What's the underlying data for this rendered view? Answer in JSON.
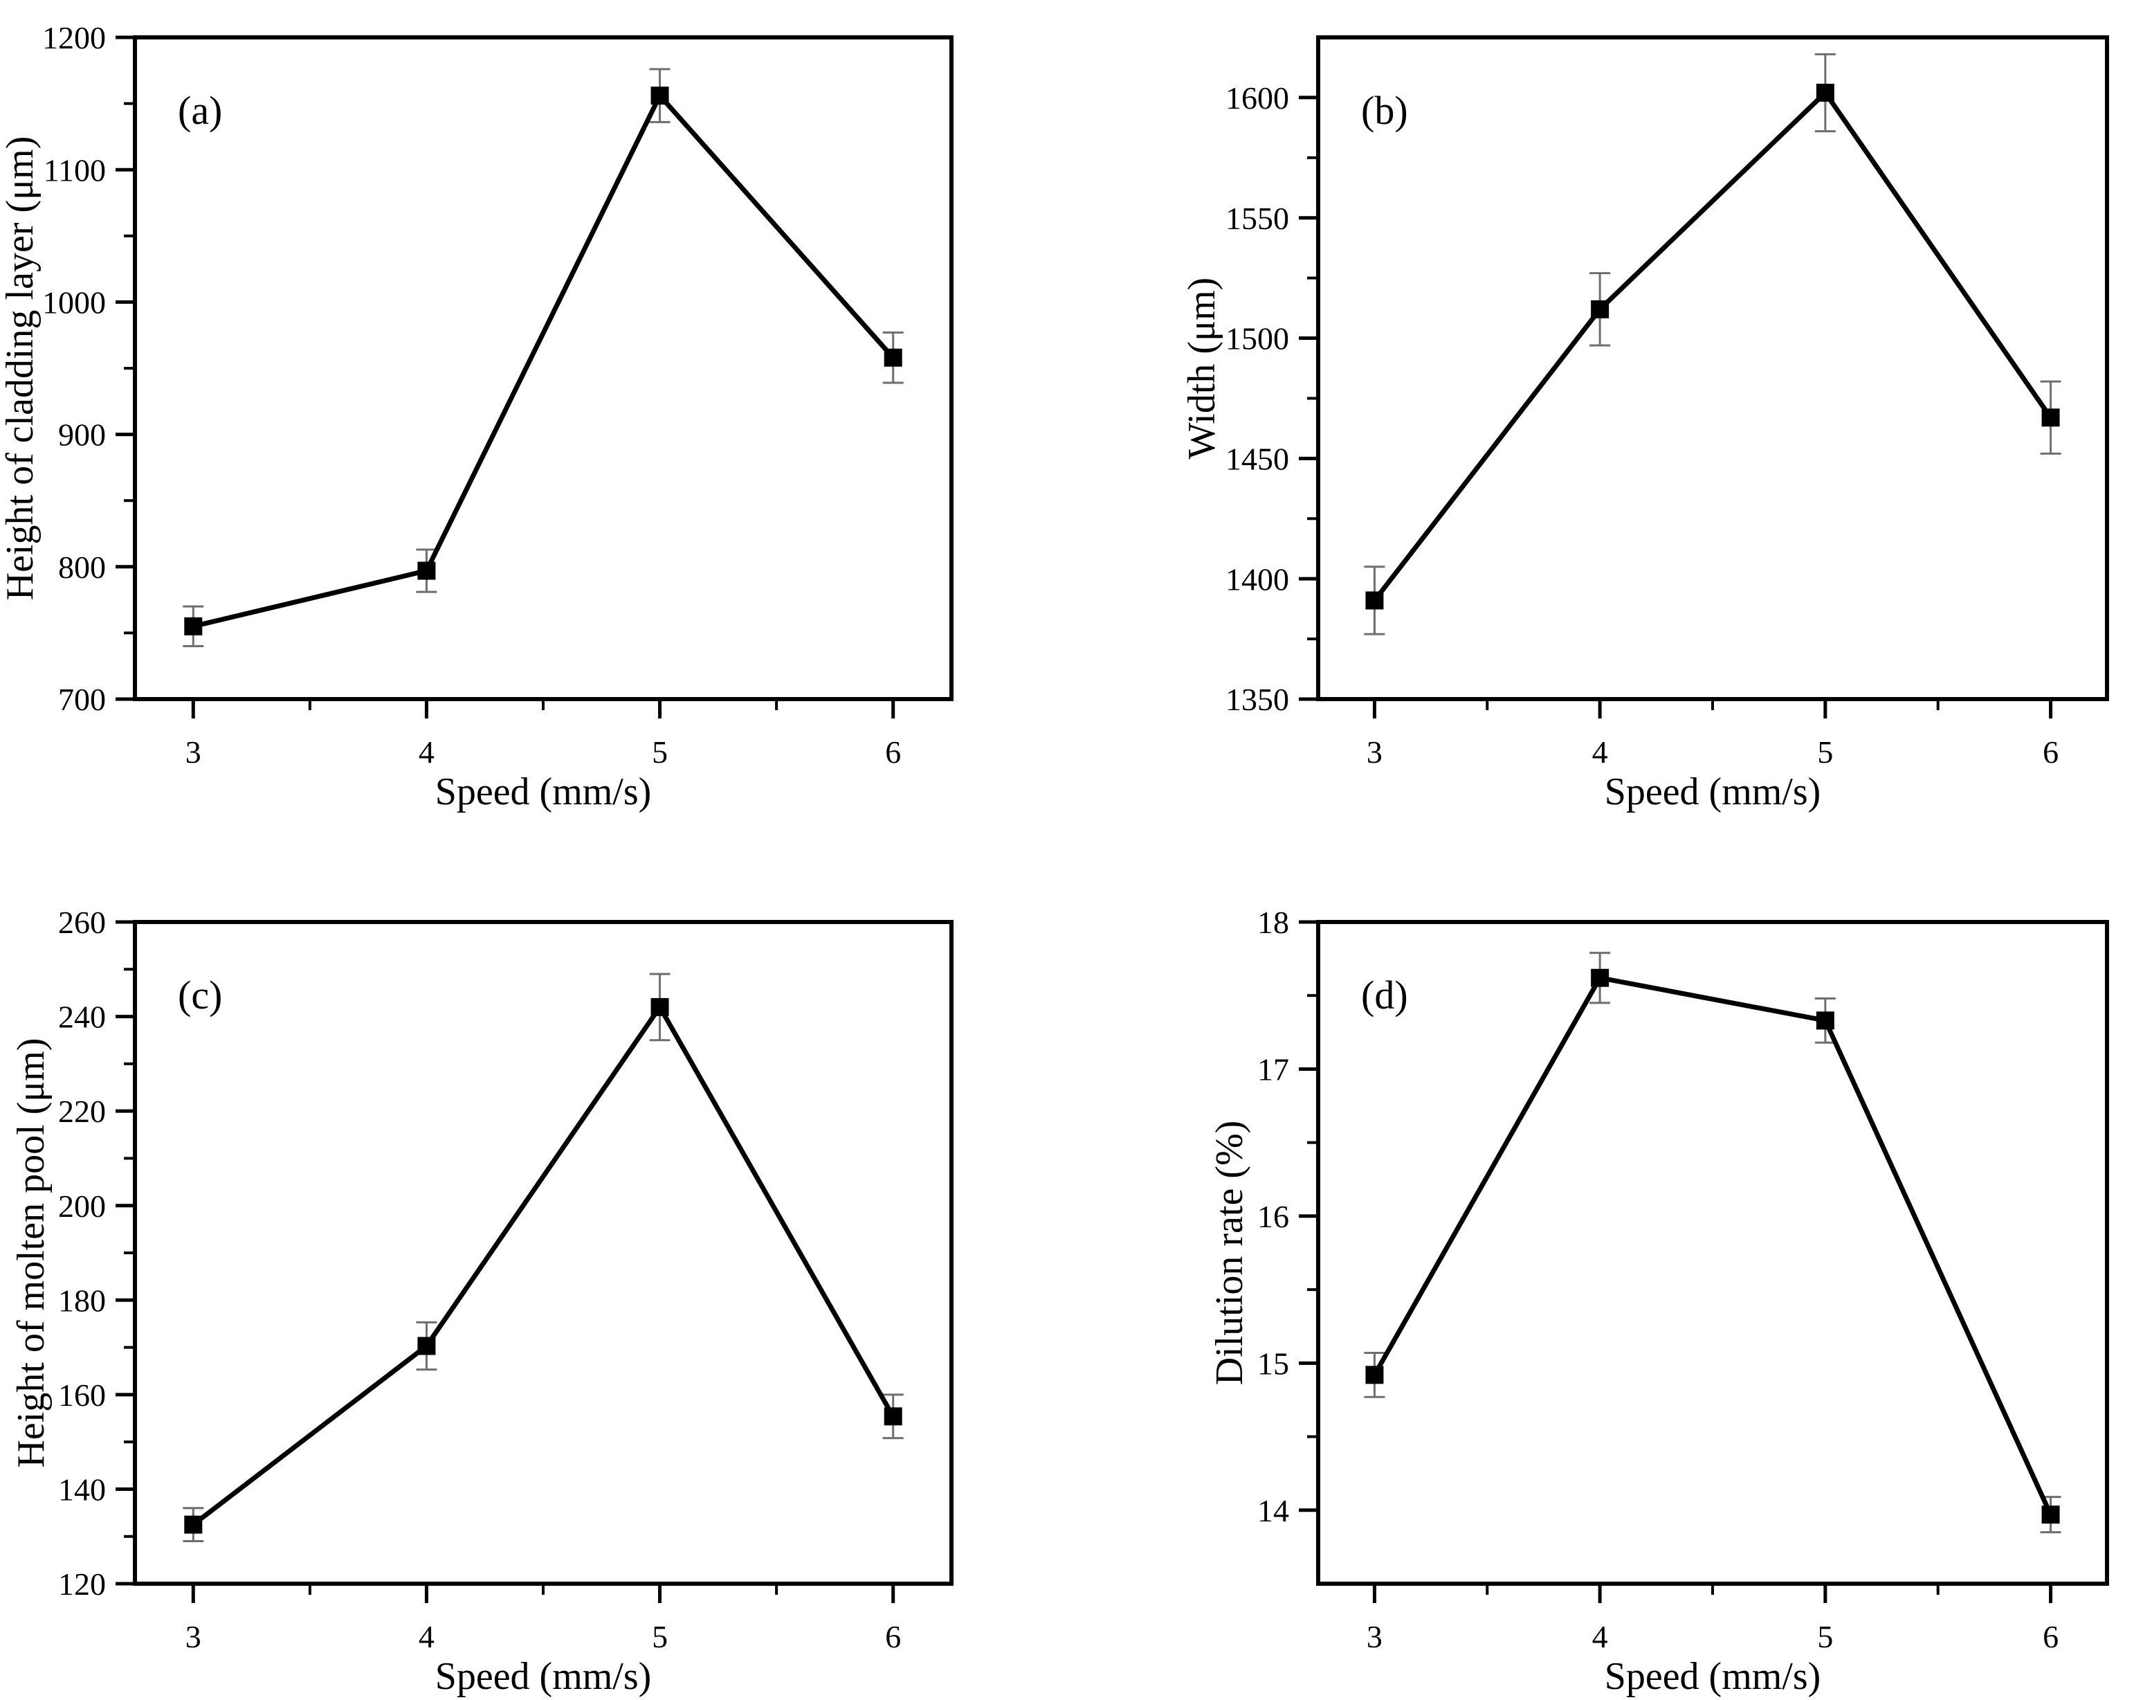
{
  "figure": {
    "background_color": "#ffffff",
    "axis_color": "#000000",
    "error_bar_color": "#6e6e6e",
    "shared_xlabel": "Speed (mm/s)"
  },
  "chart_data": [
    {
      "type": "line",
      "panel_label": "(a)",
      "panel_key": "a",
      "xlabel": "Speed (mm/s)",
      "ylabel": "Height of cladding layer (μm)",
      "x": [
        3,
        4,
        5,
        6
      ],
      "y": [
        755,
        797,
        1156,
        958
      ],
      "yerr": [
        15,
        16,
        20,
        19
      ],
      "xlim": [
        2.75,
        6.25
      ],
      "ylim": [
        700,
        1200
      ],
      "xticks": [
        3,
        4,
        5,
        6
      ],
      "xtick_minor": [
        3.5,
        4.5,
        5.5
      ],
      "ytick_major": 100,
      "ytick_minor": 50,
      "marker": "filled-square",
      "line_color": "#000000",
      "error_bar_color": "#6e6e6e",
      "grid": false,
      "legend": "none"
    },
    {
      "type": "line",
      "panel_label": "(b)",
      "panel_key": "b",
      "xlabel": "Speed (mm/s)",
      "ylabel": "Width (μm)",
      "x": [
        3,
        4,
        5,
        6
      ],
      "y": [
        1391,
        1512,
        1602,
        1467
      ],
      "yerr": [
        14,
        15,
        16,
        15
      ],
      "xlim": [
        2.75,
        6.25
      ],
      "ylim": [
        1350,
        1625
      ],
      "xticks": [
        3,
        4,
        5,
        6
      ],
      "xtick_minor": [
        3.5,
        4.5,
        5.5
      ],
      "ytick_major": 50,
      "ytick_minor": 25,
      "marker": "filled-square",
      "line_color": "#000000",
      "error_bar_color": "#6e6e6e",
      "grid": false,
      "legend": "none"
    },
    {
      "type": "line",
      "panel_label": "(c)",
      "panel_key": "c",
      "xlabel": "Speed (mm/s)",
      "ylabel": "Height of molten pool (μm)",
      "x": [
        3,
        4,
        5,
        6
      ],
      "y": [
        132.5,
        170.3,
        242,
        155.4
      ],
      "yerr": [
        3.5,
        5,
        7,
        4.6
      ],
      "xlim": [
        2.75,
        6.25
      ],
      "ylim": [
        120,
        260
      ],
      "xticks": [
        3,
        4,
        5,
        6
      ],
      "xtick_minor": [
        3.5,
        4.5,
        5.5
      ],
      "ytick_major": 20,
      "ytick_minor": 10,
      "marker": "filled-square",
      "line_color": "#000000",
      "error_bar_color": "#6e6e6e",
      "grid": false,
      "legend": "none"
    },
    {
      "type": "line",
      "panel_label": "(d)",
      "panel_key": "d",
      "xlabel": "Speed (mm/s)",
      "ylabel": "Dilution rate (%)",
      "x": [
        3,
        4,
        5,
        6
      ],
      "y": [
        14.92,
        17.62,
        17.33,
        13.97
      ],
      "yerr": [
        0.15,
        0.17,
        0.15,
        0.12
      ],
      "xlim": [
        2.75,
        6.25
      ],
      "ylim": [
        13.5,
        18
      ],
      "xticks": [
        3,
        4,
        5,
        6
      ],
      "xtick_minor": [
        3.5,
        4.5,
        5.5
      ],
      "ytick_major": 1,
      "ytick_minor": 0.5,
      "marker": "filled-square",
      "line_color": "#000000",
      "error_bar_color": "#6e6e6e",
      "grid": false,
      "legend": "none"
    }
  ]
}
